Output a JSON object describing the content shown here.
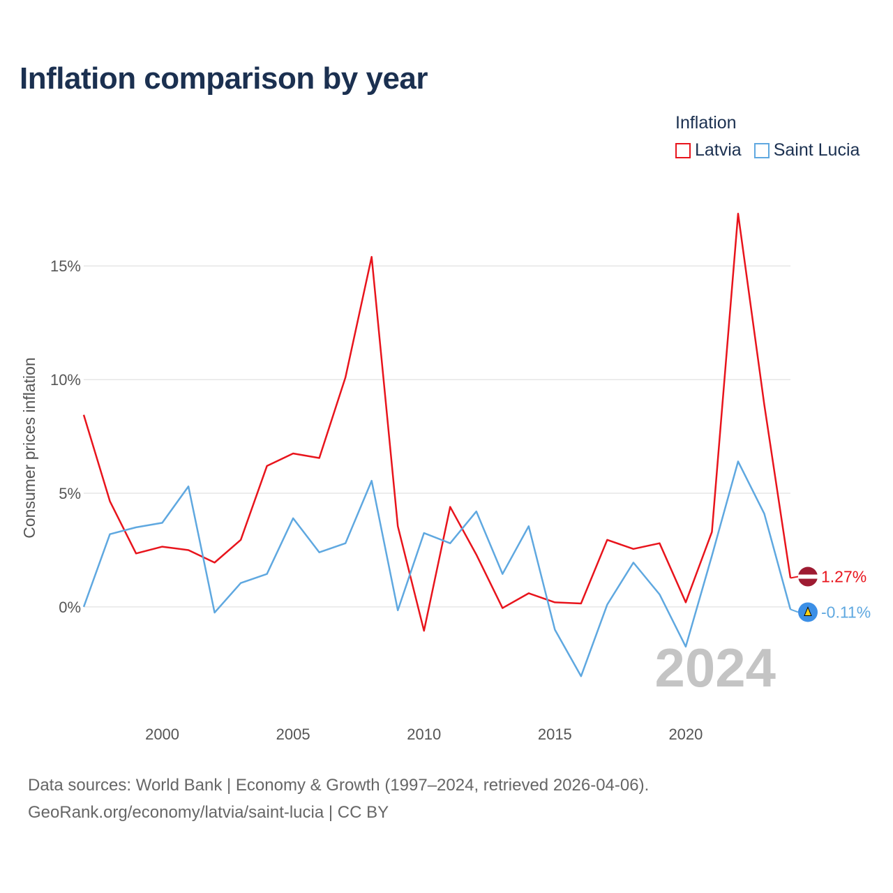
{
  "title": "Inflation comparison by year",
  "legend": {
    "title": "Inflation",
    "items": [
      {
        "label": "Latvia",
        "color": "#e8141c"
      },
      {
        "label": "Saint Lucia",
        "color": "#5fa8e0"
      }
    ]
  },
  "chart_data": {
    "type": "line",
    "title": "Inflation comparison by year",
    "ylabel": "Consumer prices inflation",
    "xlabel": "",
    "x": [
      1997,
      1998,
      1999,
      2000,
      2001,
      2002,
      2003,
      2004,
      2005,
      2006,
      2007,
      2008,
      2009,
      2010,
      2011,
      2012,
      2013,
      2014,
      2015,
      2016,
      2017,
      2018,
      2019,
      2020,
      2021,
      2022,
      2023,
      2024
    ],
    "series": [
      {
        "name": "Latvia",
        "color": "#e8141c",
        "values": [
          8.45,
          4.65,
          2.35,
          2.65,
          2.5,
          1.95,
          2.95,
          6.2,
          6.75,
          6.55,
          10.1,
          15.4,
          3.55,
          -1.05,
          4.4,
          2.3,
          -0.05,
          0.6,
          0.2,
          0.15,
          2.95,
          2.55,
          2.8,
          0.2,
          3.3,
          17.3,
          8.9,
          1.27
        ],
        "end_label": "1.27%"
      },
      {
        "name": "Saint Lucia",
        "color": "#5fa8e0",
        "values": [
          0.0,
          3.2,
          3.5,
          3.7,
          5.3,
          -0.25,
          1.05,
          1.45,
          3.9,
          2.4,
          2.8,
          5.55,
          -0.15,
          3.25,
          2.8,
          4.2,
          1.45,
          3.55,
          -1.0,
          -3.05,
          0.1,
          1.95,
          0.55,
          -1.75,
          2.25,
          6.4,
          4.1,
          -0.11
        ],
        "end_label": "-0.11%"
      }
    ],
    "xticks": [
      2000,
      2005,
      2010,
      2015,
      2020
    ],
    "xtick_labels": [
      "2000",
      "2005",
      "2010",
      "2015",
      "2020"
    ],
    "yticks": [
      0,
      5,
      10,
      15
    ],
    "ytick_labels": [
      "0%",
      "5%",
      "10%",
      "15%"
    ],
    "xlim": [
      1997,
      2024
    ],
    "ylim": [
      -4.3,
      17.8
    ],
    "grid": true,
    "current_year": "2024"
  },
  "source": {
    "line1": "Data sources: World Bank | Economy & Growth (1997–2024, retrieved 2026-04-06).",
    "line2": "GeoRank.org/economy/latvia/saint-lucia | CC BY"
  }
}
